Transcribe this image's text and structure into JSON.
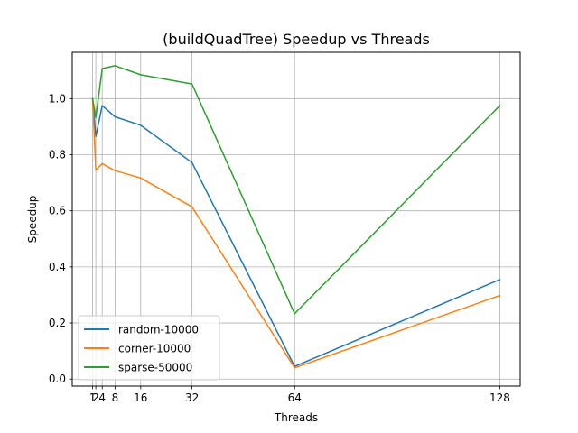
{
  "chart_data": {
    "type": "line",
    "title": "(buildQuadTree) Speedup vs Threads",
    "xlabel": "Threads",
    "ylabel": "Speedup",
    "x": [
      1,
      2,
      4,
      8,
      16,
      32,
      64,
      128
    ],
    "xticks": [
      "1",
      "2",
      "4",
      "8",
      "16",
      "32",
      "64",
      "128"
    ],
    "yticks": [
      "0.0",
      "0.2",
      "0.4",
      "0.6",
      "0.8",
      "1.0"
    ],
    "xlim": [
      -5.35,
      134.35
    ],
    "ylim": [
      -0.025,
      1.165
    ],
    "grid": true,
    "legend_position": "lower-left",
    "series": [
      {
        "name": "random-10000",
        "color": "#1f77b4",
        "values": [
          1.0,
          0.865,
          0.975,
          0.935,
          0.905,
          0.772,
          0.045,
          0.355
        ]
      },
      {
        "name": "corner-10000",
        "color": "#ff7f0e",
        "values": [
          1.0,
          0.745,
          0.768,
          0.743,
          0.717,
          0.614,
          0.04,
          0.298
        ]
      },
      {
        "name": "sparse-50000",
        "color": "#2ca02c",
        "values": [
          1.0,
          0.932,
          1.107,
          1.117,
          1.085,
          1.052,
          0.233,
          0.975
        ]
      }
    ]
  }
}
